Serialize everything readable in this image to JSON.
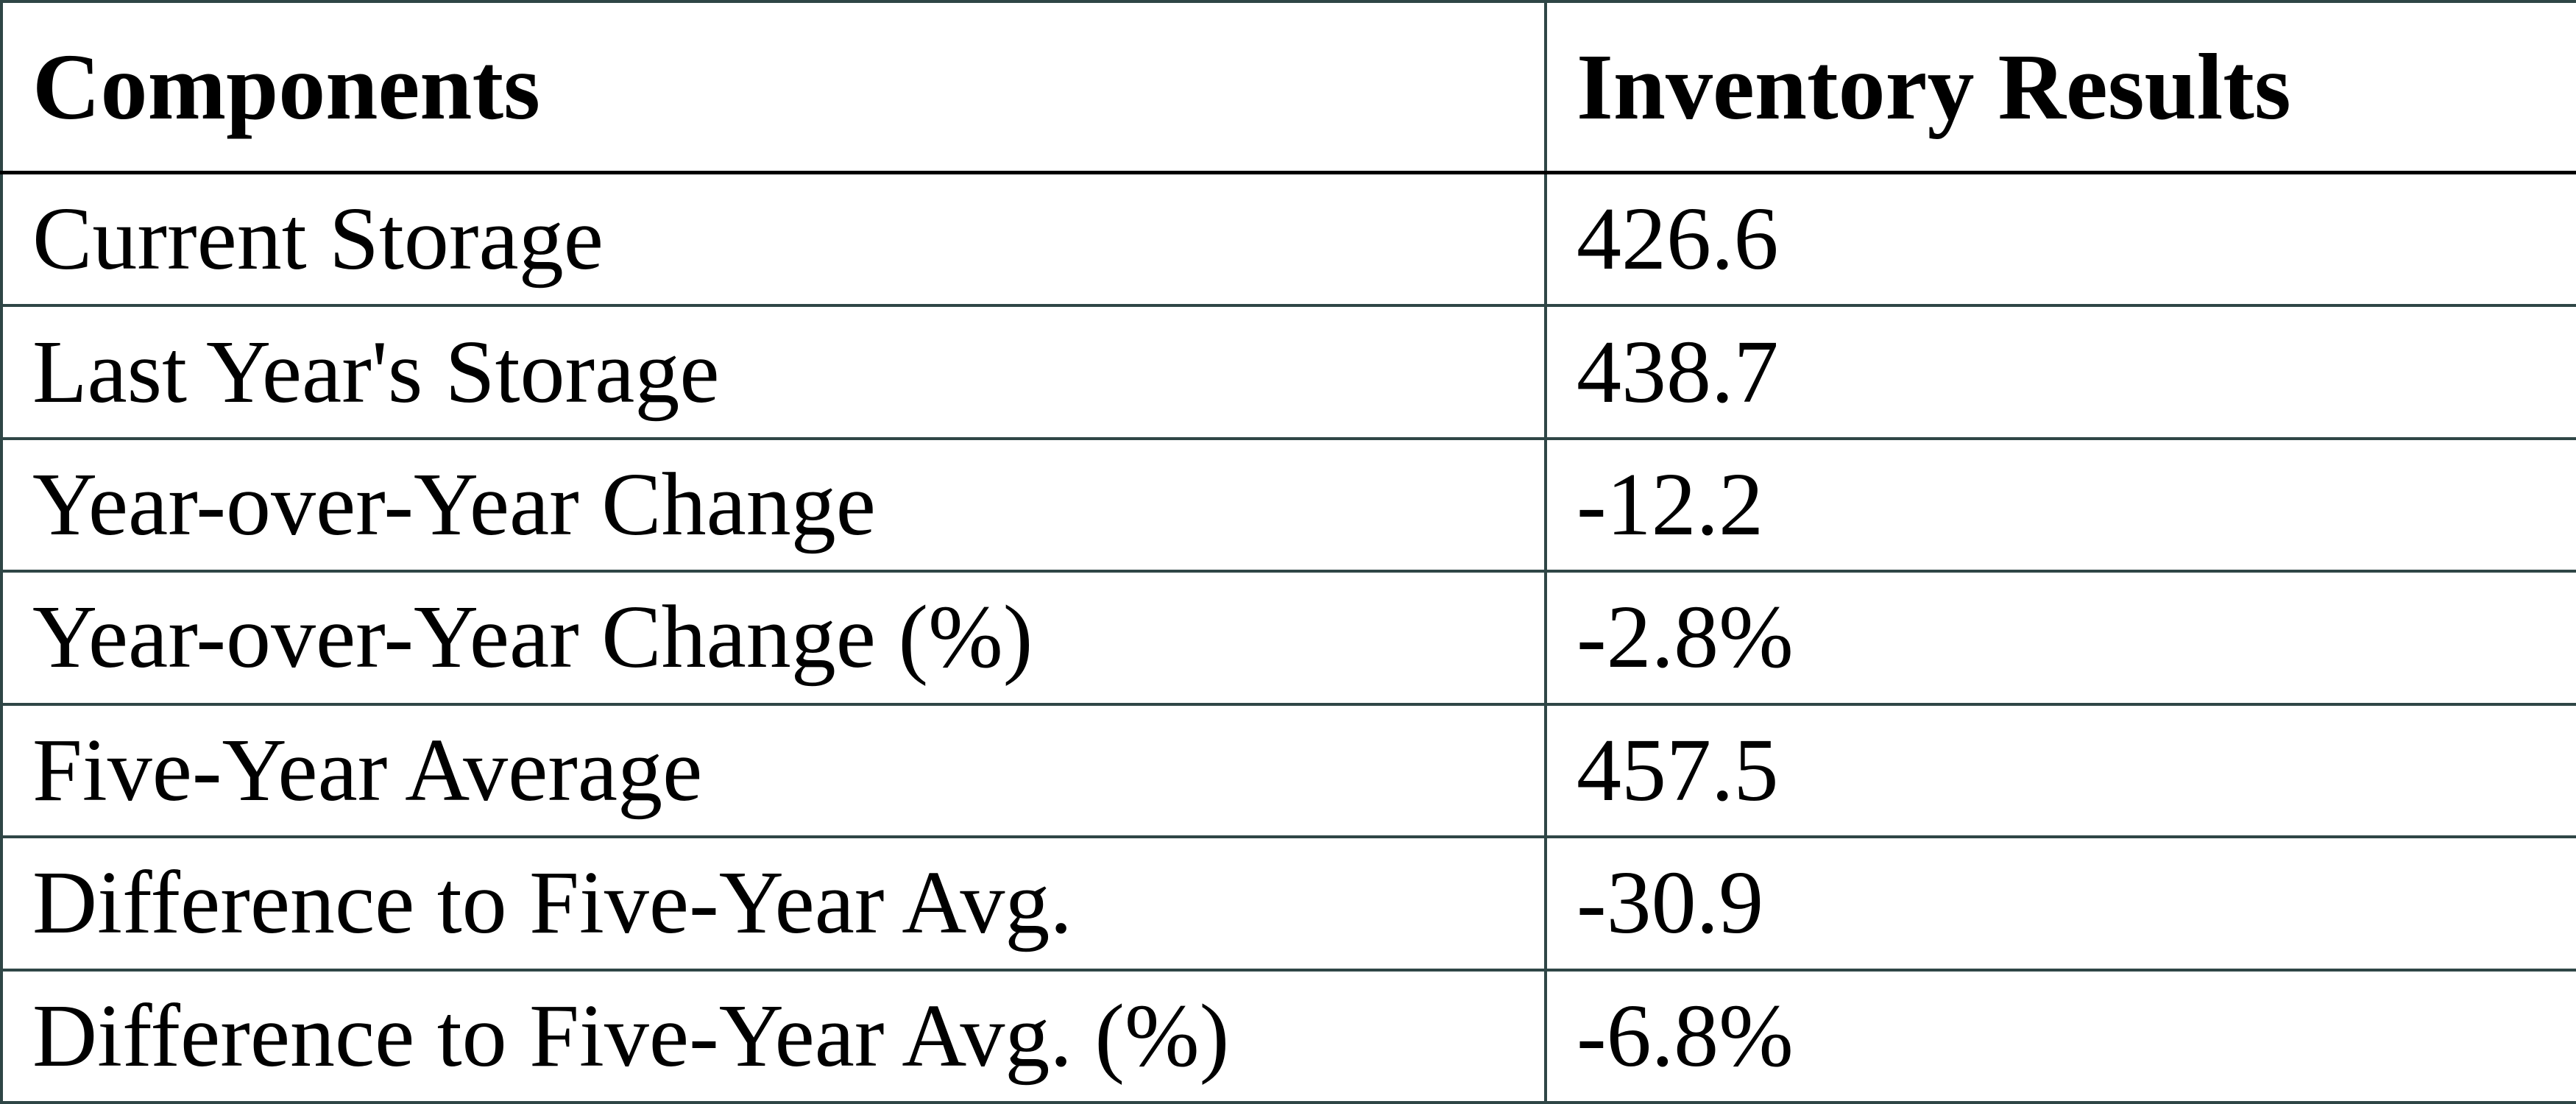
{
  "table": {
    "header": [
      "Components",
      "Inventory Results"
    ],
    "rows": [
      [
        "Current Storage",
        "426.6"
      ],
      [
        "Last Year's Storage",
        "438.7"
      ],
      [
        "Year-over-Year Change",
        "-12.2"
      ],
      [
        "Year-over-Year Change (%)",
        "-2.8%"
      ],
      [
        "Five-Year Average",
        "457.5"
      ],
      [
        "Difference to Five-Year Avg.",
        "-30.9"
      ],
      [
        "Difference to Five-Year Avg. (%)",
        "-6.8%"
      ]
    ]
  }
}
